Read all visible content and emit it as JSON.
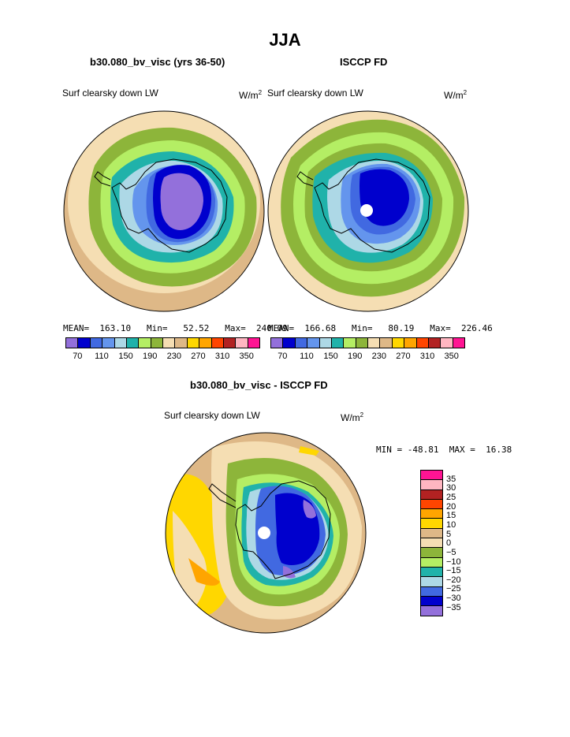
{
  "title": "JJA",
  "chart_data": [
    {
      "type": "heatmap",
      "projection": "south polar stereographic",
      "case_title": "b30.080_bv_visc (yrs 36-50)",
      "variable": "Surf clearsky down LW",
      "units": "W/m",
      "units_sup": "2",
      "stats": {
        "mean": "163.10",
        "min": "52.52",
        "max": "240.09"
      },
      "stats_text": "MEAN=  163.10   Min=   52.52   Max=  240.09",
      "contour_levels": [
        70,
        90,
        110,
        130,
        150,
        170,
        190,
        210,
        230,
        250,
        270,
        290,
        310,
        330,
        350
      ],
      "colorbar_labels": [
        "70",
        "110",
        "150",
        "190",
        "230",
        "270",
        "310",
        "350"
      ],
      "colors": [
        "#9370db",
        "#0000cd",
        "#4169e1",
        "#6495ed",
        "#add8e6",
        "#20b2aa",
        "#b4ee64",
        "#8db53a",
        "#f5deb3",
        "#deb887",
        "#ffd700",
        "#ffa500",
        "#ff4500",
        "#b22222",
        "#ffb6c1",
        "#ff1493"
      ]
    },
    {
      "type": "heatmap",
      "projection": "south polar stereographic",
      "case_title": "ISCCP FD",
      "variable": "Surf clearsky down LW",
      "units": "W/m",
      "units_sup": "2",
      "stats": {
        "mean": "166.68",
        "min": "80.19",
        "max": "226.46"
      },
      "stats_text": "MEAN=  166.68   Min=   80.19   Max=  226.46",
      "contour_levels": [
        70,
        90,
        110,
        130,
        150,
        170,
        190,
        210,
        230,
        250,
        270,
        290,
        310,
        330,
        350
      ],
      "colorbar_labels": [
        "70",
        "110",
        "150",
        "190",
        "230",
        "270",
        "310",
        "350"
      ],
      "colors": [
        "#9370db",
        "#0000cd",
        "#4169e1",
        "#6495ed",
        "#add8e6",
        "#20b2aa",
        "#b4ee64",
        "#8db53a",
        "#f5deb3",
        "#deb887",
        "#ffd700",
        "#ffa500",
        "#ff4500",
        "#b22222",
        "#ffb6c1",
        "#ff1493"
      ]
    },
    {
      "type": "heatmap",
      "projection": "south polar stereographic",
      "case_title": "b30.080_bv_visc - ISCCP FD",
      "variable": "Surf clearsky down LW",
      "units": "W/m",
      "units_sup": "2",
      "stats": {
        "min": "-48.81",
        "max": "16.38"
      },
      "stats_text": "MIN = -48.81  MAX =  16.38",
      "contour_levels": [
        -35,
        -30,
        -25,
        -20,
        -15,
        -10,
        -5,
        0,
        5,
        10,
        15,
        20,
        25,
        30,
        35
      ],
      "colorbar_labels": [
        "35",
        "30",
        "25",
        "20",
        "15",
        "10",
        "5",
        "0",
        "−5",
        "−10",
        "−15",
        "−20",
        "−25",
        "−30",
        "−35"
      ],
      "colors": [
        "#ff1493",
        "#ffb6c1",
        "#b22222",
        "#ff4500",
        "#ffa500",
        "#ffd700",
        "#deb887",
        "#f5deb3",
        "#8db53a",
        "#b4ee64",
        "#20b2aa",
        "#add8e6",
        "#4169e1",
        "#0000cd",
        "#9370db"
      ]
    }
  ]
}
